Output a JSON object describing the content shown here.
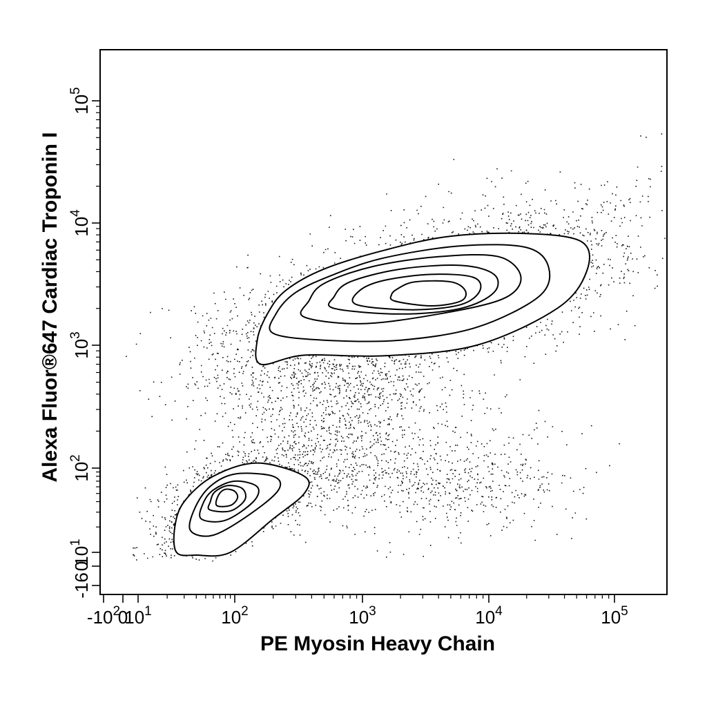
{
  "chart_data": {
    "type": "scatter",
    "subtype": "flow-cytometry-contour-density",
    "title": "",
    "xlabel": "PE Myosin Heavy Chain",
    "ylabel": "Alexa Fluor®647 Cardiac Troponin I",
    "x_scale": "biexponential",
    "y_scale": "biexponential",
    "xlim": [
      -100,
      300000
    ],
    "ylim": [
      -16,
      300000
    ],
    "grid": false,
    "legend": "none",
    "x_ticks": [
      {
        "value": -100,
        "base": "-10",
        "exp": "2"
      },
      {
        "value": 0,
        "base": "0",
        "exp": ""
      },
      {
        "value": 10,
        "base": "10",
        "exp": "1"
      },
      {
        "value": 100,
        "base": "10",
        "exp": "2"
      },
      {
        "value": 1000,
        "base": "10",
        "exp": "3"
      },
      {
        "value": 10000,
        "base": "10",
        "exp": "4"
      },
      {
        "value": 100000,
        "base": "10",
        "exp": "5"
      }
    ],
    "y_ticks": [
      {
        "value": -16,
        "base": "-16",
        "exp": ""
      },
      {
        "value": 0,
        "base": "0",
        "exp": ""
      },
      {
        "value": 10,
        "base": "10",
        "exp": "1"
      },
      {
        "value": 100,
        "base": "10",
        "exp": "2"
      },
      {
        "value": 1000,
        "base": "10",
        "exp": "3"
      },
      {
        "value": 10000,
        "base": "10",
        "exp": "4"
      },
      {
        "value": 100000,
        "base": "10",
        "exp": "5"
      }
    ],
    "populations": [
      {
        "center_x": 3200,
        "center_y": 2700,
        "contour_levels": [
          [
            [
              160,
              700
            ],
            [
              350,
              830
            ],
            [
              1500,
              820
            ],
            [
              8000,
              1000
            ],
            [
              35000,
              2000
            ],
            [
              60000,
              4000
            ],
            [
              55000,
              7000
            ],
            [
              20000,
              8200
            ],
            [
              5000,
              7800
            ],
            [
              1500,
              6000
            ],
            [
              500,
              4200
            ],
            [
              250,
              2800
            ],
            [
              180,
              1800
            ],
            [
              150,
              1100
            ]
          ],
          [
            [
              200,
              1250
            ],
            [
              500,
              1100
            ],
            [
              2000,
              1100
            ],
            [
              8000,
              1400
            ],
            [
              25000,
              2500
            ],
            [
              30000,
              4300
            ],
            [
              20000,
              6300
            ],
            [
              6000,
              6500
            ],
            [
              1500,
              5200
            ],
            [
              600,
              3800
            ],
            [
              300,
              2700
            ],
            [
              210,
              1800
            ]
          ],
          [
            [
              350,
              1700
            ],
            [
              1000,
              1500
            ],
            [
              4000,
              1800
            ],
            [
              13000,
              2400
            ],
            [
              18000,
              3600
            ],
            [
              12000,
              5300
            ],
            [
              4000,
              5300
            ],
            [
              1200,
              4400
            ],
            [
              500,
              3200
            ],
            [
              380,
              2300
            ]
          ],
          [
            [
              600,
              2000
            ],
            [
              2000,
              1800
            ],
            [
              6000,
              2000
            ],
            [
              11000,
              2700
            ],
            [
              11000,
              3800
            ],
            [
              6000,
              4500
            ],
            [
              2000,
              4200
            ],
            [
              800,
              3300
            ],
            [
              600,
              2500
            ]
          ],
          [
            [
              900,
              2150
            ],
            [
              2500,
              1950
            ],
            [
              6000,
              2150
            ],
            [
              8500,
              2800
            ],
            [
              7500,
              3600
            ],
            [
              3500,
              3800
            ],
            [
              1500,
              3400
            ],
            [
              950,
              2800
            ]
          ],
          [
            [
              1800,
              2300
            ],
            [
              3500,
              2100
            ],
            [
              6000,
              2300
            ],
            [
              6500,
              2800
            ],
            [
              5000,
              3300
            ],
            [
              2600,
              3300
            ],
            [
              1900,
              2900
            ],
            [
              1700,
              2600
            ]
          ]
        ]
      },
      {
        "center_x": 85,
        "center_y": 40,
        "contour_levels": [
          [
            [
              25,
              10
            ],
            [
              40,
              8
            ],
            [
              90,
              10
            ],
            [
              200,
              25
            ],
            [
              350,
              50
            ],
            [
              350,
              80
            ],
            [
              150,
              110
            ],
            [
              60,
              80
            ],
            [
              30,
              40
            ],
            [
              24,
              20
            ]
          ],
          [
            [
              35,
              18
            ],
            [
              60,
              16
            ],
            [
              130,
              28
            ],
            [
              220,
              55
            ],
            [
              200,
              80
            ],
            [
              100,
              85
            ],
            [
              55,
              60
            ],
            [
              38,
              32
            ]
          ],
          [
            [
              45,
              25
            ],
            [
              80,
              24
            ],
            [
              140,
              40
            ],
            [
              150,
              60
            ],
            [
              100,
              70
            ],
            [
              60,
              55
            ],
            [
              47,
              38
            ]
          ],
          [
            [
              55,
              32
            ],
            [
              90,
              31
            ],
            [
              120,
              42
            ],
            [
              115,
              57
            ],
            [
              85,
              62
            ],
            [
              62,
              52
            ],
            [
              56,
              40
            ]
          ],
          [
            [
              65,
              36
            ],
            [
              90,
              36
            ],
            [
              105,
              44
            ],
            [
              100,
              53
            ],
            [
              80,
              56
            ],
            [
              68,
              48
            ]
          ]
        ]
      }
    ],
    "scatter_clouds": [
      {
        "center_x": 3000,
        "center_y": 2500,
        "spread_x_decades": 0.8,
        "spread_y_decades": 0.28,
        "count": 3400,
        "tilt": 0.28
      },
      {
        "center_x": 80,
        "center_y": 38,
        "spread_x_decades": 0.35,
        "spread_y_decades": 0.25,
        "count": 1500,
        "tilt": 0.5
      },
      {
        "center_x": 600,
        "center_y": 250,
        "spread_x_decades": 0.5,
        "spread_y_decades": 0.45,
        "count": 1300,
        "tilt": 0.2
      },
      {
        "center_x": 5000,
        "center_y": 70,
        "spread_x_decades": 0.45,
        "spread_y_decades": 0.3,
        "count": 500,
        "tilt": 0.0
      }
    ]
  }
}
